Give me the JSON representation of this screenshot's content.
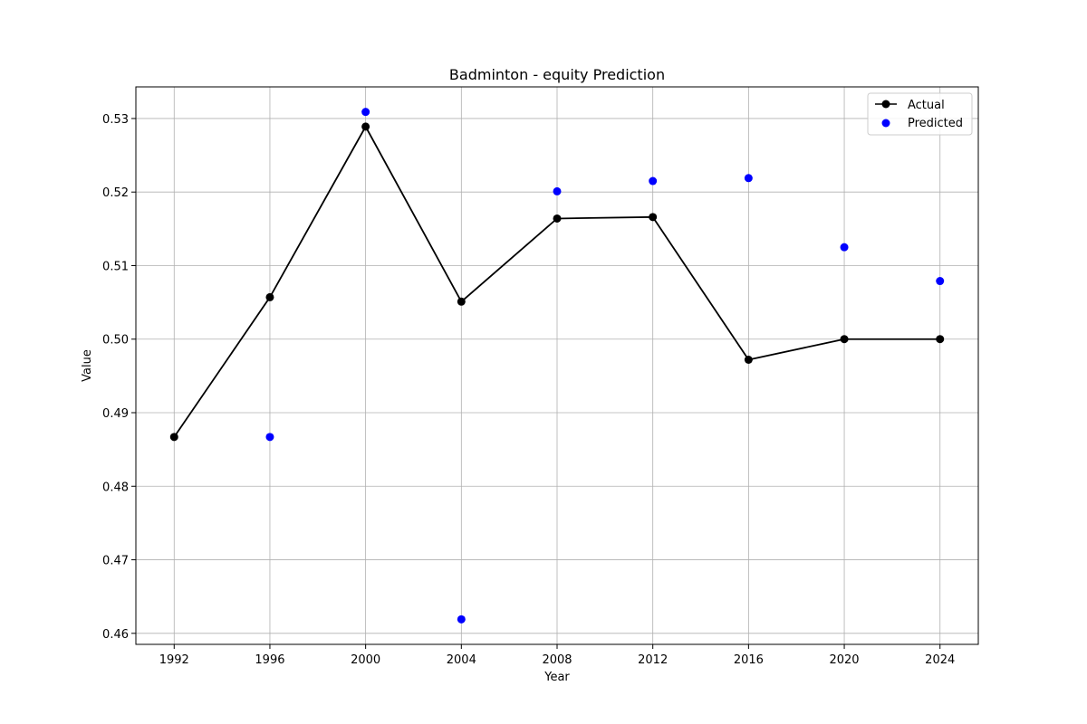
{
  "chart_data": {
    "type": "line",
    "title": "Badminton - equity Prediction",
    "xlabel": "Year",
    "ylabel": "Value",
    "x": [
      1992,
      1996,
      2000,
      2004,
      2008,
      2012,
      2016,
      2020,
      2024
    ],
    "xlim": [
      1990.4,
      2025.6
    ],
    "ylim": [
      0.4585,
      0.5343
    ],
    "xticks": [
      "1992",
      "1996",
      "2000",
      "2004",
      "2008",
      "2012",
      "2016",
      "2020",
      "2024"
    ],
    "yticks": [
      "0.46",
      "0.47",
      "0.48",
      "0.49",
      "0.50",
      "0.51",
      "0.52",
      "0.53"
    ],
    "grid": true,
    "legend_position": "top-right",
    "series": [
      {
        "name": "Actual",
        "kind": "line-marker",
        "color": "#000000",
        "x": [
          1992,
          1996,
          2000,
          2004,
          2008,
          2012,
          2016,
          2020,
          2024
        ],
        "y": [
          0.4867,
          0.5057,
          0.5289,
          0.5051,
          0.5164,
          0.5166,
          0.4972,
          0.5,
          0.5
        ]
      },
      {
        "name": "Predicted",
        "kind": "scatter",
        "color": "#0000ff",
        "x": [
          1996,
          2000,
          2004,
          2008,
          2012,
          2016,
          2020,
          2024
        ],
        "y": [
          0.4867,
          0.5309,
          0.4619,
          0.5201,
          0.5215,
          0.5219,
          0.5125,
          0.5079
        ]
      }
    ]
  }
}
